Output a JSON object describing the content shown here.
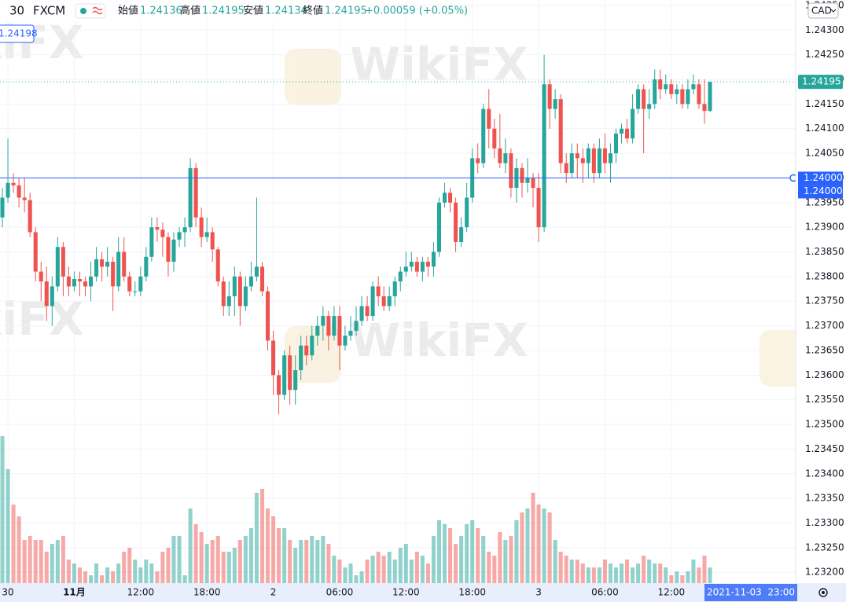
{
  "header": {
    "interval": "30",
    "symbol": "FXCM",
    "fields": [
      {
        "label": "始値",
        "value": "1.24136"
      },
      {
        "label": "高値",
        "value": "1.24195"
      },
      {
        "label": "安値",
        "value": "1.24134"
      },
      {
        "label": "終値",
        "value": "1.24195"
      }
    ],
    "change": "+0.00059 (+0.05%)"
  },
  "currency": "CAD",
  "left_label": "1.24198",
  "watermark": "WikiFX",
  "chart_data": {
    "type": "candlestick",
    "up_color": "#26a69a",
    "down_color": "#ef5350",
    "grid": true,
    "open": [
      1.2392,
      1.2396,
      1.2399,
      1.23985,
      1.2396,
      1.23955,
      1.2389,
      1.2381,
      1.2379,
      1.2374,
      1.2378,
      1.2386,
      1.238,
      1.2378,
      1.23795,
      1.2379,
      1.2378,
      1.238,
      1.23835,
      1.2382,
      1.2383,
      1.2378,
      1.2385,
      1.238,
      1.2377,
      1.2377,
      1.238,
      1.2384,
      1.239,
      1.23895,
      1.2388,
      1.2383,
      1.23875,
      1.2389,
      1.239,
      1.2402,
      1.2392,
      1.2388,
      1.2389,
      1.23855,
      1.2379,
      1.2374,
      1.2376,
      1.238,
      1.2374,
      1.2378,
      1.238,
      1.2382,
      1.2377,
      1.2367,
      1.236,
      1.2356,
      1.2364,
      1.2357,
      1.2361,
      1.2366,
      1.2364,
      1.2368,
      1.237,
      1.2372,
      1.2368,
      1.2372,
      1.2366,
      1.2368,
      1.2369,
      1.2371,
      1.2374,
      1.2372,
      1.2378,
      1.2376,
      1.2374,
      1.2376,
      1.2379,
      1.2381,
      1.2382,
      1.2383,
      1.2381,
      1.2383,
      1.2382,
      1.2385,
      1.2395,
      1.2397,
      1.2395,
      1.2387,
      1.239,
      1.2396,
      1.2404,
      1.2403,
      1.2414,
      1.241,
      1.2406,
      1.2403,
      1.2405,
      1.2398,
      1.2402,
      1.2399,
      1.24,
      1.2398,
      1.239,
      1.2419,
      1.2414,
      1.2416,
      1.2403,
      1.2401,
      1.2405,
      1.2404,
      1.2403,
      1.2406,
      1.2401,
      1.2406,
      1.2403,
      1.2405,
      1.2409,
      1.241,
      1.2408,
      1.2414,
      1.2418,
      1.2414,
      1.2415,
      1.242,
      1.2418,
      1.2419,
      1.2417,
      1.2418,
      1.2415,
      1.2418,
      1.2419,
      1.2415,
      1.24136
    ],
    "high": [
      1.2398,
      1.2408,
      1.2401,
      1.24,
      1.24,
      1.2397,
      1.239,
      1.2383,
      1.2382,
      1.238,
      1.2388,
      1.2387,
      1.2382,
      1.2381,
      1.2381,
      1.238,
      1.2383,
      1.2386,
      1.2385,
      1.2386,
      1.2384,
      1.2388,
      1.2388,
      1.2381,
      1.2379,
      1.2382,
      1.2386,
      1.2392,
      1.2392,
      1.2391,
      1.2389,
      1.2389,
      1.239,
      1.2392,
      1.2404,
      1.2403,
      1.2394,
      1.2392,
      1.239,
      1.2386,
      1.238,
      1.2379,
      1.2382,
      1.2381,
      1.238,
      1.2383,
      1.2396,
      1.2383,
      1.2378,
      1.2369,
      1.2361,
      1.2365,
      1.2366,
      1.2364,
      1.2368,
      1.2368,
      1.237,
      1.2372,
      1.2374,
      1.2373,
      1.2374,
      1.2374,
      1.237,
      1.2372,
      1.2374,
      1.2376,
      1.2376,
      1.2379,
      1.238,
      1.2378,
      1.2378,
      1.238,
      1.2382,
      1.2385,
      1.2385,
      1.2384,
      1.2384,
      1.2384,
      1.2387,
      1.2396,
      1.2399,
      1.2398,
      1.2396,
      1.2392,
      1.2399,
      1.2406,
      1.2407,
      1.2415,
      1.2418,
      1.2412,
      1.2413,
      1.2408,
      1.2406,
      1.2404,
      1.2403,
      1.2404,
      1.2401,
      1.2401,
      1.2425,
      1.242,
      1.2418,
      1.2417,
      1.2405,
      1.2407,
      1.2407,
      1.2406,
      1.2407,
      1.2407,
      1.2408,
      1.2409,
      1.2407,
      1.241,
      1.2411,
      1.2412,
      1.2417,
      1.2419,
      1.2419,
      1.2418,
      1.2422,
      1.2422,
      1.2421,
      1.242,
      1.2419,
      1.2419,
      1.242,
      1.2421,
      1.242,
      1.242,
      1.24195
    ],
    "low": [
      1.239,
      1.2395,
      1.2397,
      1.2394,
      1.2393,
      1.2388,
      1.2379,
      1.2375,
      1.2371,
      1.237,
      1.2377,
      1.2376,
      1.2376,
      1.2377,
      1.2376,
      1.2376,
      1.2375,
      1.2379,
      1.2379,
      1.238,
      1.2373,
      1.2377,
      1.2379,
      1.2376,
      1.2376,
      1.2376,
      1.2379,
      1.2383,
      1.2387,
      1.2384,
      1.238,
      1.2381,
      1.2386,
      1.2386,
      1.2389,
      1.239,
      1.2386,
      1.2387,
      1.2383,
      1.2378,
      1.2372,
      1.2372,
      1.2372,
      1.237,
      1.2373,
      1.2377,
      1.2379,
      1.2376,
      1.2365,
      1.2356,
      1.2352,
      1.2355,
      1.2354,
      1.2354,
      1.2359,
      1.2362,
      1.2363,
      1.2366,
      1.2367,
      1.2365,
      1.2367,
      1.2361,
      1.2365,
      1.2367,
      1.2368,
      1.237,
      1.2371,
      1.2371,
      1.2374,
      1.2373,
      1.2373,
      1.2374,
      1.2377,
      1.238,
      1.2381,
      1.238,
      1.2379,
      1.238,
      1.238,
      1.2384,
      1.2394,
      1.2393,
      1.2385,
      1.2386,
      1.2389,
      1.2395,
      1.2401,
      1.2402,
      1.2406,
      1.2404,
      1.2402,
      1.2401,
      1.2396,
      1.2395,
      1.2396,
      1.2397,
      1.2394,
      1.2387,
      1.2389,
      1.241,
      1.2412,
      1.2401,
      1.2399,
      1.24,
      1.24,
      1.2399,
      1.24,
      1.2399,
      1.24,
      1.2401,
      1.2399,
      1.2403,
      1.2407,
      1.2407,
      1.2407,
      1.2413,
      1.2405,
      1.2412,
      1.2414,
      1.2416,
      1.2417,
      1.2416,
      1.2415,
      1.2414,
      1.2414,
      1.2417,
      1.2414,
      1.2411,
      1.24134
    ],
    "close": [
      1.2396,
      1.2399,
      1.23985,
      1.2396,
      1.23955,
      1.2389,
      1.2381,
      1.2379,
      1.2374,
      1.2378,
      1.2386,
      1.238,
      1.2378,
      1.23795,
      1.2379,
      1.2378,
      1.238,
      1.23835,
      1.2382,
      1.2383,
      1.2378,
      1.2385,
      1.238,
      1.2377,
      1.2377,
      1.238,
      1.2384,
      1.239,
      1.23895,
      1.2388,
      1.2383,
      1.23875,
      1.2389,
      1.239,
      1.2402,
      1.2392,
      1.2388,
      1.2389,
      1.23855,
      1.2379,
      1.2374,
      1.2376,
      1.238,
      1.2374,
      1.2378,
      1.238,
      1.2382,
      1.2377,
      1.2367,
      1.236,
      1.2356,
      1.2364,
      1.2357,
      1.2361,
      1.2366,
      1.2364,
      1.2368,
      1.237,
      1.2372,
      1.2368,
      1.2372,
      1.2366,
      1.2368,
      1.2369,
      1.2371,
      1.2374,
      1.2372,
      1.2378,
      1.2376,
      1.2374,
      1.2376,
      1.2379,
      1.2381,
      1.2382,
      1.2383,
      1.2381,
      1.2383,
      1.2382,
      1.2385,
      1.2395,
      1.2397,
      1.2395,
      1.2387,
      1.239,
      1.2396,
      1.2404,
      1.2403,
      1.2414,
      1.241,
      1.2406,
      1.2403,
      1.2405,
      1.2398,
      1.2402,
      1.2399,
      1.24,
      1.2398,
      1.239,
      1.2419,
      1.2414,
      1.2416,
      1.2403,
      1.2401,
      1.2405,
      1.2404,
      1.2403,
      1.2406,
      1.2401,
      1.2406,
      1.2403,
      1.2405,
      1.2409,
      1.241,
      1.2408,
      1.2414,
      1.2418,
      1.2414,
      1.2415,
      1.242,
      1.2418,
      1.2419,
      1.2417,
      1.2418,
      1.2415,
      1.2418,
      1.2419,
      1.2415,
      1.24136,
      1.24195
    ],
    "volume": [
      187,
      145,
      100,
      85,
      55,
      60,
      55,
      55,
      40,
      50,
      55,
      60,
      30,
      25,
      20,
      15,
      10,
      25,
      10,
      20,
      15,
      25,
      40,
      45,
      30,
      20,
      30,
      25,
      15,
      40,
      45,
      60,
      60,
      10,
      95,
      75,
      65,
      50,
      55,
      60,
      40,
      40,
      45,
      55,
      60,
      70,
      115,
      120,
      95,
      85,
      70,
      70,
      55,
      45,
      55,
      55,
      60,
      55,
      60,
      50,
      35,
      30,
      20,
      25,
      10,
      15,
      30,
      35,
      40,
      35,
      40,
      30,
      45,
      50,
      30,
      40,
      35,
      25,
      60,
      80,
      75,
      70,
      50,
      60,
      75,
      80,
      70,
      60,
      40,
      35,
      65,
      55,
      60,
      80,
      90,
      95,
      115,
      100,
      95,
      90,
      55,
      40,
      35,
      30,
      30,
      25,
      20,
      20,
      20,
      30,
      25,
      20,
      25,
      30,
      20,
      25,
      35,
      30,
      25,
      25,
      20,
      10,
      15,
      10,
      15,
      30,
      20,
      35,
      20
    ],
    "xlim": [
      -0.43,
      143.5
    ],
    "xticks": [
      {
        "value": 1,
        "label": "30"
      },
      {
        "value": 13,
        "label": "11月"
      },
      {
        "value": 25,
        "label": "12:00"
      },
      {
        "value": 37,
        "label": "18:00"
      },
      {
        "value": 49,
        "label": "2"
      },
      {
        "value": 61,
        "label": "06:00"
      },
      {
        "value": 73,
        "label": "12:00"
      },
      {
        "value": 85,
        "label": "18:00"
      },
      {
        "value": 97,
        "label": "3"
      },
      {
        "value": 109,
        "label": "06:00"
      },
      {
        "value": 121,
        "label": "12:00"
      }
    ],
    "ylim": [
      1.23178,
      1.24361
    ],
    "yticks": [
      {
        "value": 1.2435,
        "label": "1.24350"
      },
      {
        "value": 1.243,
        "label": "1.24300"
      },
      {
        "value": 1.2425,
        "label": "1.24250"
      },
      {
        "value": 1.242,
        "label": "1.24200"
      },
      {
        "value": 1.2415,
        "label": "1.24150"
      },
      {
        "value": 1.241,
        "label": "1.24100"
      },
      {
        "value": 1.2405,
        "label": "1.24050"
      },
      {
        "value": 1.24,
        "label": "1.24000"
      },
      {
        "value": 1.2395,
        "label": "1.23950"
      },
      {
        "value": 1.239,
        "label": "1.23900"
      },
      {
        "value": 1.2385,
        "label": "1.23850"
      },
      {
        "value": 1.238,
        "label": "1.23800"
      },
      {
        "value": 1.2375,
        "label": "1.23750"
      },
      {
        "value": 1.237,
        "label": "1.23700"
      },
      {
        "value": 1.2365,
        "label": "1.23650"
      },
      {
        "value": 1.236,
        "label": "1.23600"
      },
      {
        "value": 1.2355,
        "label": "1.23550"
      },
      {
        "value": 1.235,
        "label": "1.23500"
      },
      {
        "value": 1.2345,
        "label": "1.23450"
      },
      {
        "value": 1.234,
        "label": "1.23400"
      },
      {
        "value": 1.2335,
        "label": "1.23350"
      },
      {
        "value": 1.233,
        "label": "1.23300"
      },
      {
        "value": 1.2325,
        "label": "1.23250"
      },
      {
        "value": 1.232,
        "label": "1.23200"
      }
    ],
    "last_price": {
      "value": 1.24195,
      "label": "1.24195"
    },
    "hline": {
      "value": 1.24,
      "labels": [
        "1.24000",
        "1.24000"
      ]
    },
    "time_label": "2021-11-03  23:00"
  }
}
